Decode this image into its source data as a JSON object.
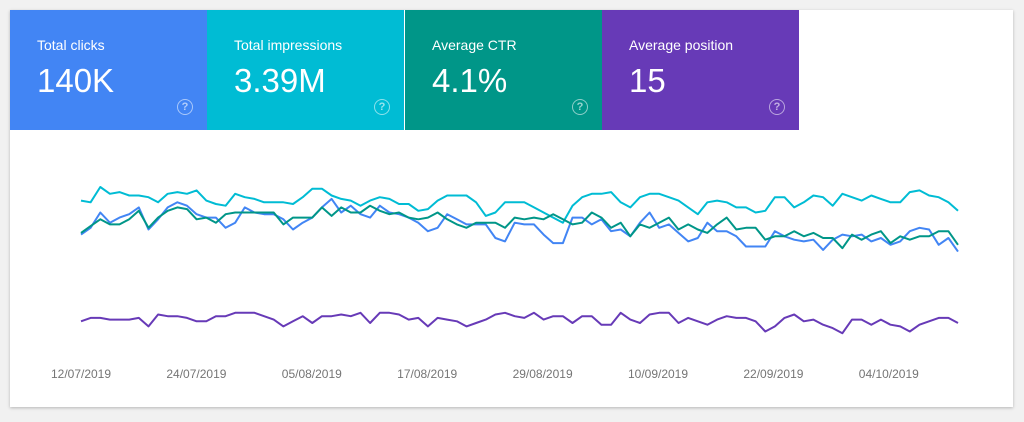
{
  "metrics": [
    {
      "label": "Total clicks",
      "value": "140K",
      "color": "#4285f4"
    },
    {
      "label": "Total impressions",
      "value": "3.39M",
      "color": "#00bcd4"
    },
    {
      "label": "Average CTR",
      "value": "4.1%",
      "color": "#009688"
    },
    {
      "label": "Average position",
      "value": "15",
      "color": "#673ab7"
    }
  ],
  "help_icon": "?",
  "chart_data": {
    "type": "line",
    "x_ticks": [
      "12/07/2019",
      "24/07/2019",
      "05/08/2019",
      "17/08/2019",
      "29/08/2019",
      "10/09/2019",
      "22/09/2019",
      "04/10/2019"
    ],
    "x_range": [
      "12/07/2019",
      "11/10/2019"
    ],
    "ylim": [
      0,
      100
    ],
    "y_axis_labels_shown": false,
    "grid": false,
    "legend": "none",
    "series": [
      {
        "metric": "impressions",
        "color": "#00bcd4",
        "values": [
          82,
          81,
          90,
          86,
          87,
          85,
          85,
          84,
          81,
          86,
          87,
          86,
          88,
          82,
          80,
          79,
          86,
          84,
          83,
          81,
          81,
          81,
          80,
          84,
          89,
          89,
          85,
          83,
          82,
          79,
          82,
          84,
          83,
          80,
          80,
          76,
          77,
          82,
          85,
          85,
          85,
          81,
          73,
          75,
          81,
          81,
          81,
          78,
          75,
          72,
          69,
          79,
          84,
          86,
          86,
          87,
          81,
          78,
          84,
          86,
          86,
          84,
          82,
          78,
          74,
          81,
          82,
          81,
          78,
          78,
          75,
          76,
          84,
          84,
          78,
          81,
          85,
          84,
          79,
          86,
          84,
          82,
          85,
          83,
          81,
          81,
          87,
          88,
          85,
          84,
          81,
          76
        ]
      },
      {
        "metric": "clicks",
        "color": "#4285f4",
        "values": [
          62,
          66,
          75,
          69,
          72,
          74,
          78,
          65,
          71,
          78,
          81,
          79,
          74,
          72,
          72,
          66,
          69,
          78,
          75,
          74,
          74,
          71,
          65,
          69,
          72,
          78,
          83,
          75,
          79,
          74,
          72,
          79,
          75,
          74,
          72,
          69,
          64,
          66,
          74,
          71,
          68,
          68,
          68,
          60,
          58,
          69,
          68,
          68,
          62,
          57,
          57,
          72,
          72,
          68,
          71,
          64,
          65,
          61,
          69,
          75,
          66,
          68,
          63,
          58,
          60,
          69,
          64,
          64,
          61,
          55,
          55,
          55,
          64,
          61,
          59,
          58,
          59,
          53,
          59,
          62,
          61,
          62,
          58,
          60,
          56,
          58,
          64,
          66,
          65,
          56,
          60,
          52
        ]
      },
      {
        "metric": "ctr",
        "color": "#009688",
        "values": [
          63,
          67,
          71,
          68,
          68,
          71,
          76,
          66,
          72,
          76,
          78,
          77,
          71,
          72,
          69,
          74,
          75,
          75,
          75,
          75,
          75,
          68,
          72,
          72,
          72,
          78,
          73,
          78,
          75,
          75,
          79,
          76,
          74,
          75,
          72,
          71,
          72,
          75,
          71,
          68,
          66,
          69,
          69,
          69,
          66,
          72,
          71,
          72,
          71,
          74,
          71,
          68,
          69,
          75,
          72,
          66,
          69,
          61,
          68,
          66,
          69,
          72,
          65,
          68,
          65,
          63,
          68,
          72,
          65,
          66,
          66,
          59,
          61,
          61,
          64,
          61,
          63,
          60,
          60,
          54,
          62,
          59,
          62,
          64,
          57,
          61,
          59,
          61,
          61,
          64,
          64,
          56
        ]
      },
      {
        "metric": "position",
        "color": "#673ab7",
        "values": [
          11,
          13,
          13,
          12,
          12,
          12,
          13,
          8,
          15,
          14,
          14,
          13,
          11,
          11,
          14,
          14,
          16,
          16,
          16,
          14,
          12,
          8,
          11,
          14,
          10,
          14,
          14,
          15,
          14,
          16,
          10,
          16,
          16,
          15,
          12,
          13,
          8,
          13,
          12,
          11,
          8,
          10,
          12,
          15,
          16,
          14,
          13,
          16,
          12,
          14,
          14,
          10,
          14,
          14,
          9,
          9,
          16,
          12,
          10,
          15,
          16,
          16,
          10,
          13,
          11,
          9,
          12,
          14,
          13,
          13,
          11,
          5,
          8,
          13,
          15,
          11,
          12,
          9,
          7,
          4,
          12,
          12,
          9,
          12,
          9,
          8,
          5,
          9,
          11,
          13,
          13,
          10
        ]
      }
    ]
  }
}
